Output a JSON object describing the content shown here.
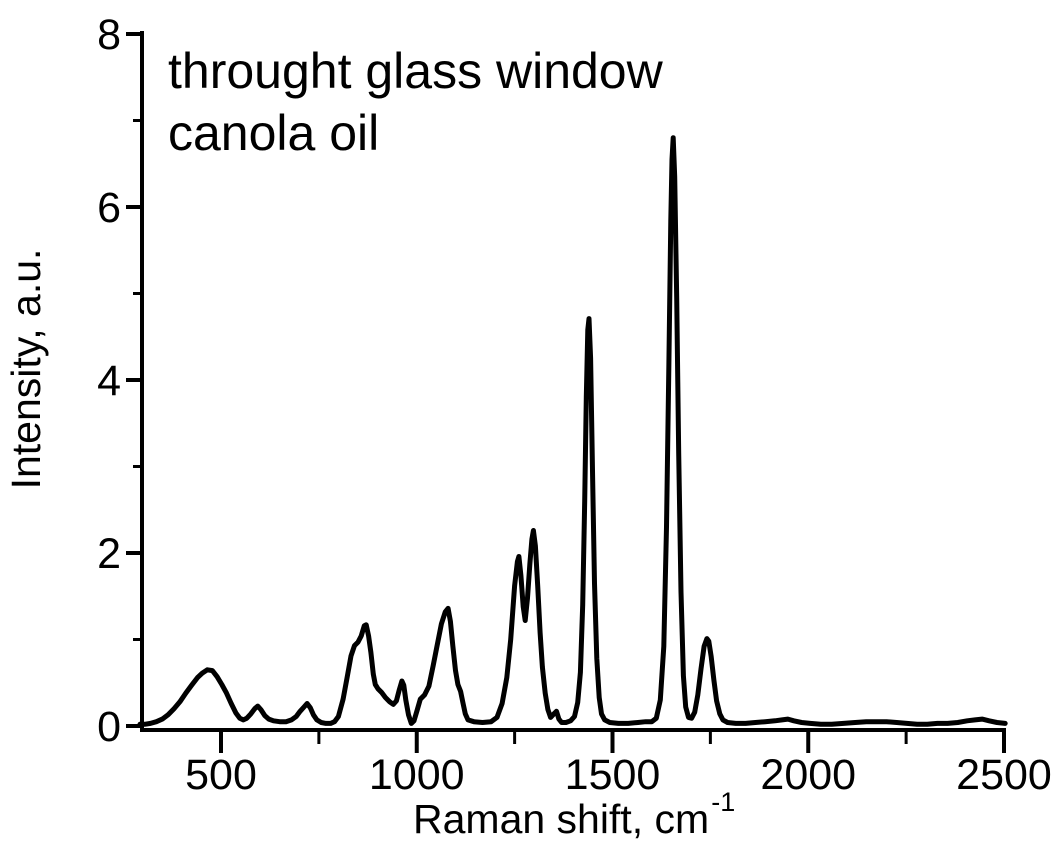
{
  "chart_data": {
    "type": "line",
    "annotation_lines": [
      "throught glass window",
      "canola oil"
    ],
    "xlabel": "Raman shift, cm",
    "xlabel_superscript": "-1",
    "ylabel": "Intensity, a.u.",
    "xlim": [
      293,
      2510
    ],
    "ylim": [
      0,
      8
    ],
    "x_major_ticks": [
      500,
      1000,
      1500,
      2000,
      2500
    ],
    "x_minor_ticks": [
      750,
      1250,
      1750,
      2250
    ],
    "y_major_ticks": [
      0,
      2,
      4,
      6,
      8
    ],
    "y_minor_ticks": [
      1,
      3,
      5,
      7
    ],
    "grid": false,
    "legend": "none",
    "line_color": "#000000",
    "background_color": "#ffffff",
    "series": [
      {
        "name": "canola oil spectrum through glass window",
        "peak_positions_cm-1": [
          472,
          594,
          720,
          870,
          963,
          1080,
          1261,
          1298,
          1440,
          1655,
          1742
        ],
        "peak_intensities_au": [
          0.65,
          0.23,
          0.26,
          1.17,
          0.52,
          1.36,
          1.96,
          2.26,
          4.71,
          6.8,
          1.01
        ],
        "points": [
          [
            293,
            0.02
          ],
          [
            305,
            0.02
          ],
          [
            320,
            0.03
          ],
          [
            335,
            0.05
          ],
          [
            350,
            0.08
          ],
          [
            365,
            0.13
          ],
          [
            380,
            0.2
          ],
          [
            395,
            0.28
          ],
          [
            410,
            0.38
          ],
          [
            425,
            0.47
          ],
          [
            440,
            0.56
          ],
          [
            452,
            0.61
          ],
          [
            465,
            0.65
          ],
          [
            478,
            0.64
          ],
          [
            490,
            0.57
          ],
          [
            502,
            0.48
          ],
          [
            514,
            0.38
          ],
          [
            526,
            0.26
          ],
          [
            538,
            0.15
          ],
          [
            548,
            0.09
          ],
          [
            557,
            0.07
          ],
          [
            566,
            0.09
          ],
          [
            576,
            0.14
          ],
          [
            586,
            0.2
          ],
          [
            594,
            0.23
          ],
          [
            602,
            0.19
          ],
          [
            612,
            0.12
          ],
          [
            622,
            0.08
          ],
          [
            634,
            0.06
          ],
          [
            650,
            0.05
          ],
          [
            666,
            0.05
          ],
          [
            680,
            0.07
          ],
          [
            692,
            0.11
          ],
          [
            702,
            0.17
          ],
          [
            712,
            0.22
          ],
          [
            720,
            0.26
          ],
          [
            728,
            0.21
          ],
          [
            736,
            0.13
          ],
          [
            745,
            0.07
          ],
          [
            756,
            0.04
          ],
          [
            768,
            0.03
          ],
          [
            780,
            0.03
          ],
          [
            790,
            0.05
          ],
          [
            800,
            0.11
          ],
          [
            812,
            0.31
          ],
          [
            822,
            0.56
          ],
          [
            832,
            0.81
          ],
          [
            841,
            0.93
          ],
          [
            850,
            0.97
          ],
          [
            858,
            1.04
          ],
          [
            866,
            1.16
          ],
          [
            871,
            1.17
          ],
          [
            877,
            1.04
          ],
          [
            883,
            0.85
          ],
          [
            889,
            0.6
          ],
          [
            894,
            0.48
          ],
          [
            901,
            0.43
          ],
          [
            910,
            0.39
          ],
          [
            920,
            0.33
          ],
          [
            931,
            0.28
          ],
          [
            940,
            0.25
          ],
          [
            948,
            0.29
          ],
          [
            955,
            0.41
          ],
          [
            962,
            0.52
          ],
          [
            967,
            0.47
          ],
          [
            972,
            0.3
          ],
          [
            979,
            0.13
          ],
          [
            986,
            0.03
          ],
          [
            993,
            0.06
          ],
          [
            1001,
            0.18
          ],
          [
            1009,
            0.31
          ],
          [
            1020,
            0.36
          ],
          [
            1031,
            0.46
          ],
          [
            1042,
            0.7
          ],
          [
            1052,
            0.93
          ],
          [
            1063,
            1.18
          ],
          [
            1073,
            1.32
          ],
          [
            1080,
            1.36
          ],
          [
            1086,
            1.21
          ],
          [
            1092,
            0.93
          ],
          [
            1099,
            0.64
          ],
          [
            1105,
            0.48
          ],
          [
            1112,
            0.4
          ],
          [
            1118,
            0.27
          ],
          [
            1124,
            0.14
          ],
          [
            1131,
            0.07
          ],
          [
            1146,
            0.05
          ],
          [
            1168,
            0.04
          ],
          [
            1190,
            0.05
          ],
          [
            1205,
            0.1
          ],
          [
            1218,
            0.26
          ],
          [
            1230,
            0.56
          ],
          [
            1240,
            1.0
          ],
          [
            1250,
            1.62
          ],
          [
            1257,
            1.9
          ],
          [
            1261,
            1.96
          ],
          [
            1266,
            1.74
          ],
          [
            1272,
            1.38
          ],
          [
            1277,
            1.22
          ],
          [
            1283,
            1.48
          ],
          [
            1289,
            1.88
          ],
          [
            1294,
            2.16
          ],
          [
            1298,
            2.26
          ],
          [
            1303,
            2.08
          ],
          [
            1309,
            1.62
          ],
          [
            1315,
            1.08
          ],
          [
            1321,
            0.68
          ],
          [
            1328,
            0.38
          ],
          [
            1335,
            0.19
          ],
          [
            1342,
            0.1
          ],
          [
            1350,
            0.14
          ],
          [
            1357,
            0.17
          ],
          [
            1363,
            0.08
          ],
          [
            1370,
            0.04
          ],
          [
            1381,
            0.04
          ],
          [
            1393,
            0.06
          ],
          [
            1403,
            0.11
          ],
          [
            1411,
            0.27
          ],
          [
            1418,
            0.62
          ],
          [
            1424,
            1.4
          ],
          [
            1429,
            2.6
          ],
          [
            1433,
            3.8
          ],
          [
            1437,
            4.58
          ],
          [
            1440,
            4.71
          ],
          [
            1444,
            4.25
          ],
          [
            1449,
            2.95
          ],
          [
            1454,
            1.65
          ],
          [
            1460,
            0.78
          ],
          [
            1466,
            0.33
          ],
          [
            1472,
            0.14
          ],
          [
            1480,
            0.07
          ],
          [
            1493,
            0.04
          ],
          [
            1515,
            0.03
          ],
          [
            1540,
            0.03
          ],
          [
            1565,
            0.04
          ],
          [
            1585,
            0.05
          ],
          [
            1600,
            0.05
          ],
          [
            1612,
            0.09
          ],
          [
            1622,
            0.3
          ],
          [
            1631,
            0.92
          ],
          [
            1638,
            2.3
          ],
          [
            1644,
            4.2
          ],
          [
            1649,
            5.85
          ],
          [
            1652,
            6.55
          ],
          [
            1655,
            6.8
          ],
          [
            1659,
            6.35
          ],
          [
            1664,
            4.95
          ],
          [
            1669,
            3.15
          ],
          [
            1675,
            1.55
          ],
          [
            1681,
            0.58
          ],
          [
            1687,
            0.22
          ],
          [
            1694,
            0.1
          ],
          [
            1702,
            0.09
          ],
          [
            1710,
            0.16
          ],
          [
            1718,
            0.36
          ],
          [
            1726,
            0.66
          ],
          [
            1734,
            0.92
          ],
          [
            1741,
            1.01
          ],
          [
            1746,
            0.98
          ],
          [
            1752,
            0.8
          ],
          [
            1759,
            0.53
          ],
          [
            1766,
            0.29
          ],
          [
            1774,
            0.14
          ],
          [
            1782,
            0.07
          ],
          [
            1794,
            0.04
          ],
          [
            1815,
            0.03
          ],
          [
            1840,
            0.03
          ],
          [
            1865,
            0.04
          ],
          [
            1890,
            0.05
          ],
          [
            1915,
            0.06
          ],
          [
            1933,
            0.07
          ],
          [
            1948,
            0.08
          ],
          [
            1963,
            0.06
          ],
          [
            1983,
            0.04
          ],
          [
            2005,
            0.03
          ],
          [
            2032,
            0.02
          ],
          [
            2060,
            0.02
          ],
          [
            2090,
            0.03
          ],
          [
            2120,
            0.04
          ],
          [
            2148,
            0.05
          ],
          [
            2175,
            0.05
          ],
          [
            2200,
            0.05
          ],
          [
            2226,
            0.04
          ],
          [
            2252,
            0.03
          ],
          [
            2278,
            0.02
          ],
          [
            2304,
            0.02
          ],
          [
            2330,
            0.03
          ],
          [
            2356,
            0.03
          ],
          [
            2382,
            0.04
          ],
          [
            2406,
            0.06
          ],
          [
            2426,
            0.07
          ],
          [
            2444,
            0.08
          ],
          [
            2462,
            0.06
          ],
          [
            2482,
            0.04
          ],
          [
            2503,
            0.03
          ]
        ]
      }
    ]
  }
}
